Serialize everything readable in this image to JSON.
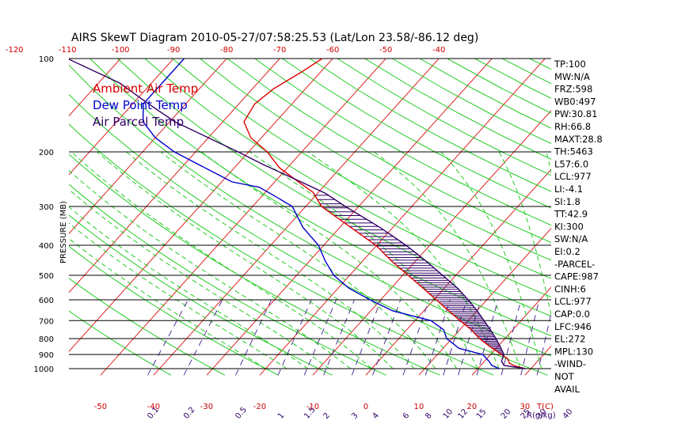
{
  "chart_data": {
    "type": "line",
    "title": "AIRS SkewT Diagram 2010-05-27/07:58:25.53 (Lat/Lon 23.58/-86.12 deg)",
    "ylabel": "PRESSURE (MB)",
    "xlabel_bottom": "T(C)",
    "xlabel_mixing": "R(g/kg)",
    "y_scale": "log",
    "ylim": [
      1050,
      100
    ],
    "pressure_ticks": [
      100,
      200,
      300,
      400,
      500,
      600,
      700,
      800,
      900,
      1000
    ],
    "bottom_temp_ticks": [
      -50,
      -40,
      -30,
      -20,
      -10,
      0,
      10,
      20,
      30
    ],
    "top_temp_ticks": [
      -120,
      -110,
      -100,
      -90,
      -80,
      -70,
      -60,
      -50,
      -40
    ],
    "mixing_ratio_ticks": [
      "0.1",
      "0.2",
      "0.5",
      "1",
      "1.5",
      "2",
      "3",
      "4",
      "6",
      "8",
      "10",
      "12",
      "15",
      "20",
      "25",
      "30",
      "40"
    ],
    "legend": [
      {
        "name": "Ambient Air Temp",
        "color": "#dd0000"
      },
      {
        "name": "Dew Point Temp",
        "color": "#0000cc"
      },
      {
        "name": "Air Parcel Temp",
        "color": "#330066"
      }
    ],
    "series": [
      {
        "name": "Ambient Air Temp",
        "color": "#dd0000",
        "pressure": [
          1000,
          980,
          960,
          930,
          900,
          850,
          800,
          750,
          700,
          650,
          600,
          550,
          500,
          450,
          400,
          350,
          300,
          270,
          250,
          225,
          200,
          180,
          160,
          140,
          125,
          110,
          100
        ],
        "temp": [
          29,
          26.5,
          25,
          24,
          22,
          18.6,
          15.2,
          12.2,
          8.5,
          4.6,
          0.5,
          -4,
          -9,
          -14.5,
          -20.2,
          -28,
          -37,
          -41,
          -45.5,
          -51.5,
          -56.5,
          -62,
          -66,
          -67,
          -66,
          -63.5,
          -62
        ]
      },
      {
        "name": "Dew Point Temp",
        "color": "#0000cc",
        "pressure": [
          1000,
          975,
          950,
          900,
          860,
          800,
          750,
          700,
          650,
          600,
          550,
          500,
          450,
          400,
          350,
          300,
          280,
          260,
          250,
          230,
          200,
          180,
          160,
          140,
          120,
          100
        ],
        "temp": [
          24,
          22,
          21,
          18.5,
          13,
          9,
          7,
          3,
          -6,
          -12,
          -18,
          -23,
          -27,
          -31,
          -37,
          -42.5,
          -47,
          -52,
          -58,
          -64,
          -74,
          -80,
          -85,
          -88,
          -88,
          -88
        ]
      },
      {
        "name": "Air Parcel Temp",
        "color": "#330066",
        "pressure": [
          1000,
          977,
          946,
          900,
          850,
          800,
          750,
          700,
          650,
          600,
          550,
          500,
          450,
          400,
          350,
          300,
          272,
          250,
          220,
          200,
          180,
          160,
          140,
          120,
          100
        ],
        "temp": [
          29,
          24.4,
          23.2,
          22.5,
          20.5,
          18.3,
          15.8,
          13,
          10,
          6.5,
          2.5,
          -2.5,
          -8,
          -14.5,
          -22.5,
          -32.5,
          -38.5,
          -45,
          -55,
          -62,
          -70,
          -79,
          -87,
          -96,
          -110
        ]
      }
    ],
    "indices": [
      "TP:100",
      "MW:N/A",
      "FRZ:598",
      "WB0:497",
      "PW:30.81",
      "RH:66.8",
      "MAXT:28.8",
      "TH:5463",
      "L57:6.0",
      "LCL:977",
      "LI:-4.1",
      "SI:1.8",
      "TT:42.9",
      "KI:300",
      "SW:N/A",
      "EI:0.2",
      "-PARCEL-",
      "CAPE:987",
      "CINH:6",
      "LCL:977",
      "CAP:0.0",
      "LFC:946",
      "EL:272",
      "MPL:130",
      "-WIND-",
      "NOT",
      "AVAIL"
    ]
  }
}
